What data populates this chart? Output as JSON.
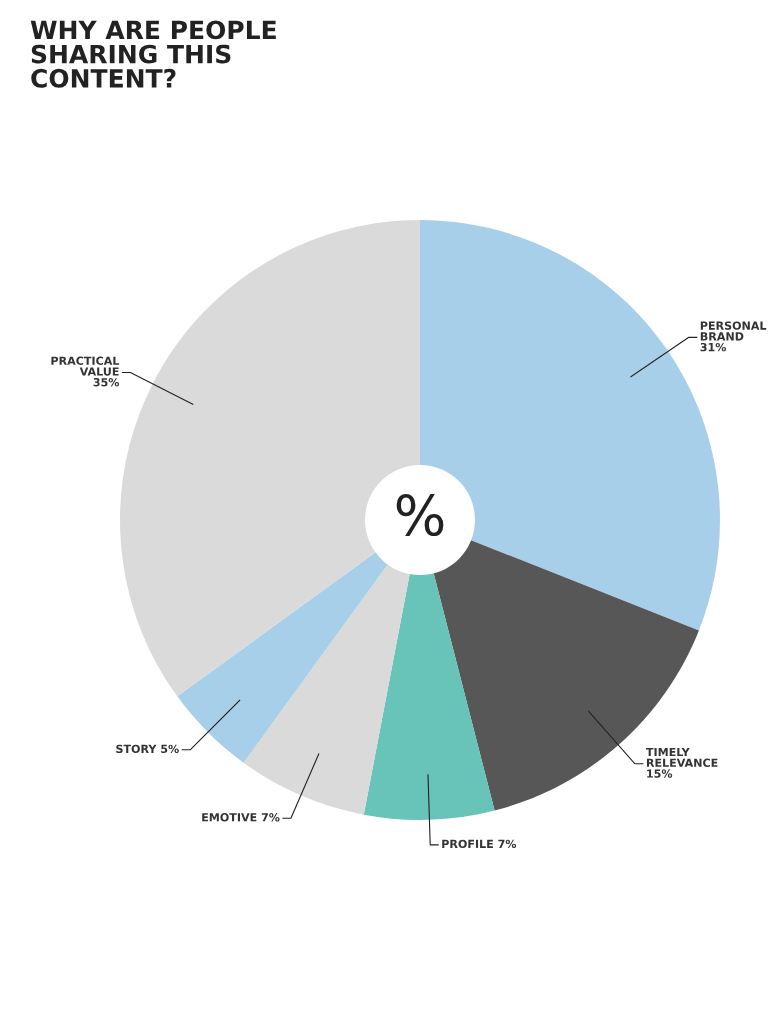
{
  "chart_data": {
    "type": "pie",
    "title": "WHY ARE PEOPLE SHARING THIS CONTENT?",
    "categories": [
      "PERSONAL BRAND",
      "TIMELY RELEVANCE",
      "PROFILE",
      "EMOTIVE",
      "STORY",
      "PRACTICAL VALUE"
    ],
    "values": [
      31,
      15,
      7,
      7,
      5,
      35
    ],
    "colors": [
      "#a8cfea",
      "#575757",
      "#68c3b8",
      "#dadada",
      "#a8cfea",
      "#dadada"
    ],
    "value_labels": [
      "31%",
      "15%",
      "7%",
      "7%",
      "5%",
      "35%"
    ],
    "annotations": [
      "%"
    ]
  }
}
